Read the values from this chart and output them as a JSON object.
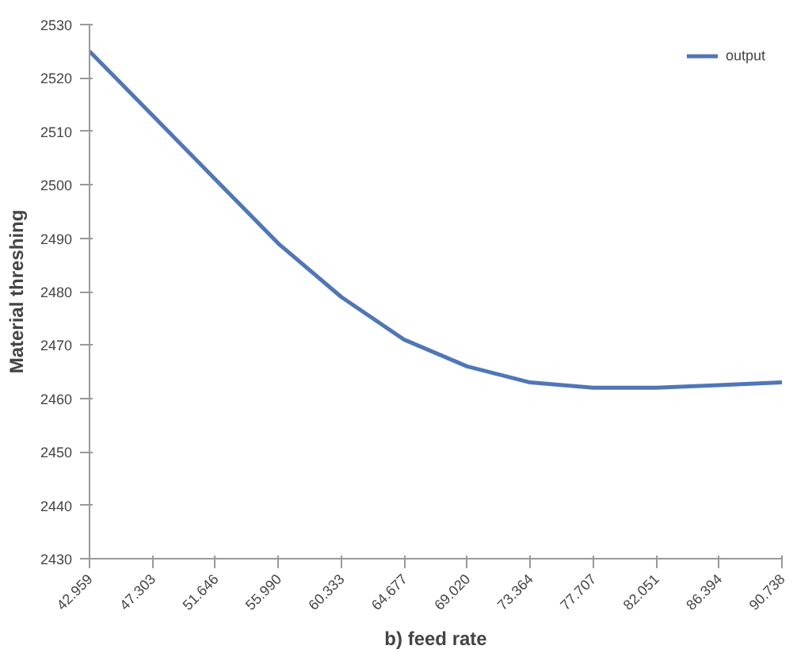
{
  "chart_data": {
    "type": "line",
    "xlabel": "b) feed rate",
    "ylabel": "Material threshing",
    "categories": [
      "42.959",
      "47.303",
      "51.646",
      "55.990",
      "60.333",
      "64.677",
      "69.020",
      "73.364",
      "77.707",
      "82.051",
      "86.394",
      "90.738"
    ],
    "series": [
      {
        "name": "output",
        "color": "#4f76b8",
        "values": [
          2525,
          2513,
          2501,
          2489,
          2479,
          2471,
          2466,
          2463,
          2462,
          2462,
          2462.5,
          2463
        ]
      }
    ],
    "ylim": [
      2430,
      2530
    ],
    "yticks": [
      2430,
      2440,
      2450,
      2460,
      2470,
      2480,
      2490,
      2500,
      2510,
      2520,
      2530
    ],
    "legend": "top right",
    "grid": false
  }
}
